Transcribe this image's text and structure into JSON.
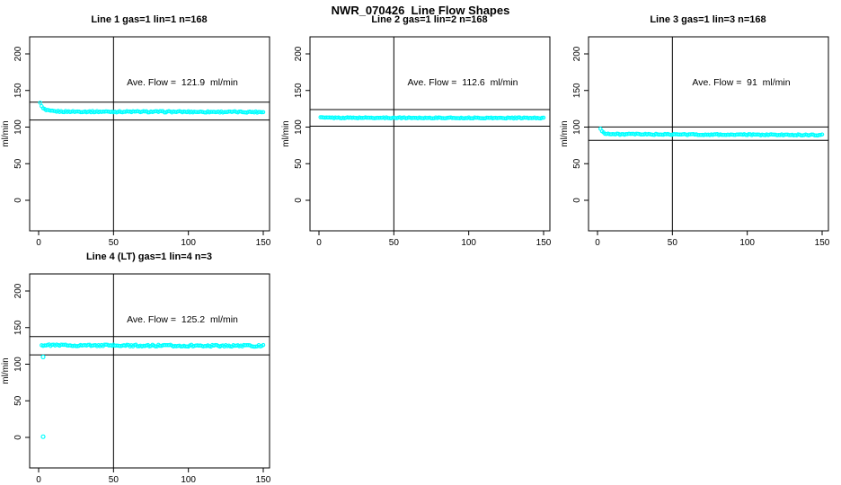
{
  "page_title": "NWR_070426  Line Flow Shapes",
  "colors": {
    "data_points": "#00ffff",
    "axis": "#000000",
    "background": "#ffffff"
  },
  "chart_data": [
    {
      "type": "scatter",
      "title": "Line 1 gas=1 lin=1 n=168",
      "annotation": "Ave. Flow =  121.9  ml/min",
      "ave_flow_ml_min": 121.9,
      "n": 168,
      "ylabel": "ml/min",
      "x_ticks": [
        0,
        50,
        100,
        150
      ],
      "y_ticks": [
        0,
        50,
        100,
        150,
        200
      ],
      "xlim": [
        -6,
        154.2
      ],
      "ylim": [
        -41.7,
        223.3
      ],
      "vline_x": 50,
      "hlines": [
        134.1,
        109.7
      ],
      "series": {
        "profile": [
          [
            1,
            134
          ],
          [
            2,
            128
          ],
          [
            3,
            125.5
          ],
          [
            5,
            123
          ],
          [
            8,
            121.8
          ],
          [
            15,
            121.2
          ],
          [
            150,
            120.6
          ]
        ],
        "noise": 0.9,
        "x_step": 1,
        "x_max": 150
      },
      "outliers": [],
      "marker_color": "#00ffff"
    },
    {
      "type": "scatter",
      "title": "Line 2 gas=1 lin=2 n=168",
      "annotation": "Ave. Flow =  112.6  ml/min",
      "ave_flow_ml_min": 112.6,
      "n": 168,
      "ylabel": "ml/min",
      "x_ticks": [
        0,
        50,
        100,
        150
      ],
      "y_ticks": [
        0,
        50,
        100,
        150,
        200
      ],
      "xlim": [
        -6,
        154.2
      ],
      "ylim": [
        -41.7,
        223.3
      ],
      "vline_x": 50,
      "hlines": [
        123.9,
        101.3
      ],
      "series": {
        "profile": [
          [
            1,
            113.5
          ],
          [
            3,
            112.8
          ],
          [
            150,
            112.4
          ]
        ],
        "noise": 0.7,
        "x_step": 1,
        "x_max": 150
      },
      "outliers": [],
      "marker_color": "#00ffff"
    },
    {
      "type": "scatter",
      "title": "Line 3 gas=1 lin=3 n=168",
      "annotation": "Ave. Flow =  91  ml/min",
      "ave_flow_ml_min": 91,
      "n": 168,
      "ylabel": "ml/min",
      "x_ticks": [
        0,
        50,
        100,
        150
      ],
      "y_ticks": [
        0,
        50,
        100,
        150,
        200
      ],
      "xlim": [
        -6,
        154.2
      ],
      "ylim": [
        -41.7,
        223.3
      ],
      "vline_x": 50,
      "hlines": [
        100.1,
        81.9
      ],
      "series": {
        "profile": [
          [
            2,
            98
          ],
          [
            3,
            94
          ],
          [
            5,
            91.5
          ],
          [
            9,
            90.3
          ],
          [
            80,
            89.7
          ],
          [
            150,
            89.2
          ]
        ],
        "noise": 0.8,
        "x_step": 1,
        "x_max": 150
      },
      "outliers": [],
      "marker_color": "#00ffff"
    },
    {
      "type": "scatter",
      "title": "Line 4 (LT) gas=1 lin=4 n=3",
      "annotation": "Ave. Flow =  125.2  ml/min",
      "ave_flow_ml_min": 125.2,
      "n": 3,
      "ylabel": "ml/min",
      "x_ticks": [
        0,
        50,
        100,
        150
      ],
      "y_ticks": [
        0,
        50,
        100,
        150,
        200
      ],
      "xlim": [
        -6,
        154.2
      ],
      "ylim": [
        -41.7,
        223.3
      ],
      "vline_x": 50,
      "hlines": [
        137.7,
        112.7
      ],
      "series": {
        "profile": [
          [
            2,
            126
          ],
          [
            60,
            125.4
          ],
          [
            150,
            125.1
          ]
        ],
        "noise": 1.2,
        "x_step": 1,
        "x_max": 150
      },
      "outliers": [
        [
          3,
          110
        ],
        [
          3,
          1
        ]
      ],
      "marker_color": "#00ffff"
    }
  ]
}
